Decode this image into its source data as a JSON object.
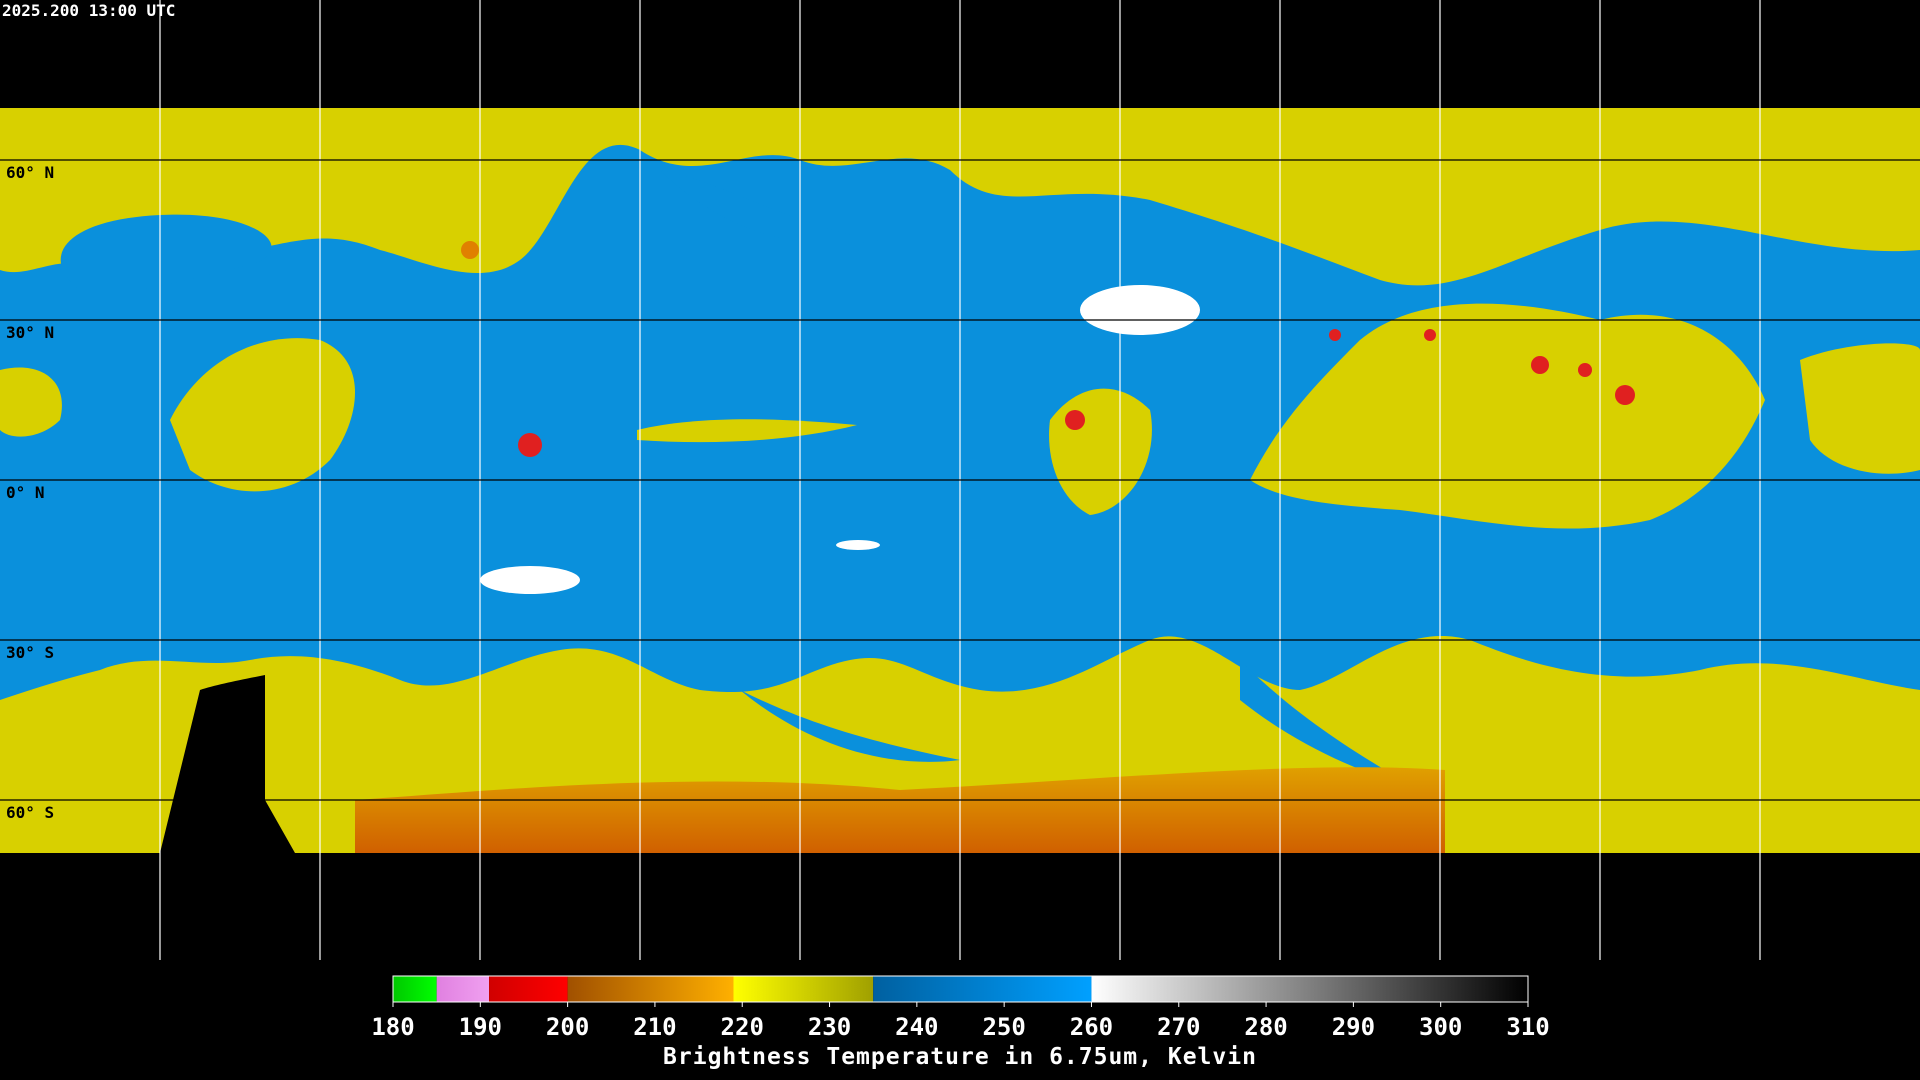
{
  "timestamp": "2025.200 13:00 UTC",
  "latitudes": [
    {
      "value": 60,
      "label": "60° N"
    },
    {
      "value": 30,
      "label": "30° N"
    },
    {
      "value": 0,
      "label": "0° N"
    },
    {
      "value": -30,
      "label": "30° S"
    },
    {
      "value": -60,
      "label": "60° S"
    }
  ],
  "colorbar": {
    "title": "Brightness Temperature in 6.75um, Kelvin",
    "range": [
      180,
      310
    ],
    "ticks": [
      180,
      190,
      200,
      210,
      220,
      230,
      240,
      250,
      260,
      270,
      280,
      290,
      300,
      310
    ],
    "segments": [
      {
        "from": 180,
        "to": 185,
        "colors": [
          "#00c800",
          "#00ff00"
        ]
      },
      {
        "from": 185,
        "to": 191,
        "colors": [
          "#e080e0",
          "#f0a0f0"
        ]
      },
      {
        "from": 191,
        "to": 200,
        "colors": [
          "#d00000",
          "#ff0000"
        ]
      },
      {
        "from": 200,
        "to": 219,
        "colors": [
          "#a05000",
          "#ffb000"
        ]
      },
      {
        "from": 219,
        "to": 235,
        "colors": [
          "#ffff00",
          "#a0a000"
        ]
      },
      {
        "from": 235,
        "to": 260,
        "colors": [
          "#0060a0",
          "#00a0ff"
        ]
      },
      {
        "from": 260,
        "to": 310,
        "colors": [
          "#ffffff",
          "#000000"
        ]
      }
    ]
  }
}
